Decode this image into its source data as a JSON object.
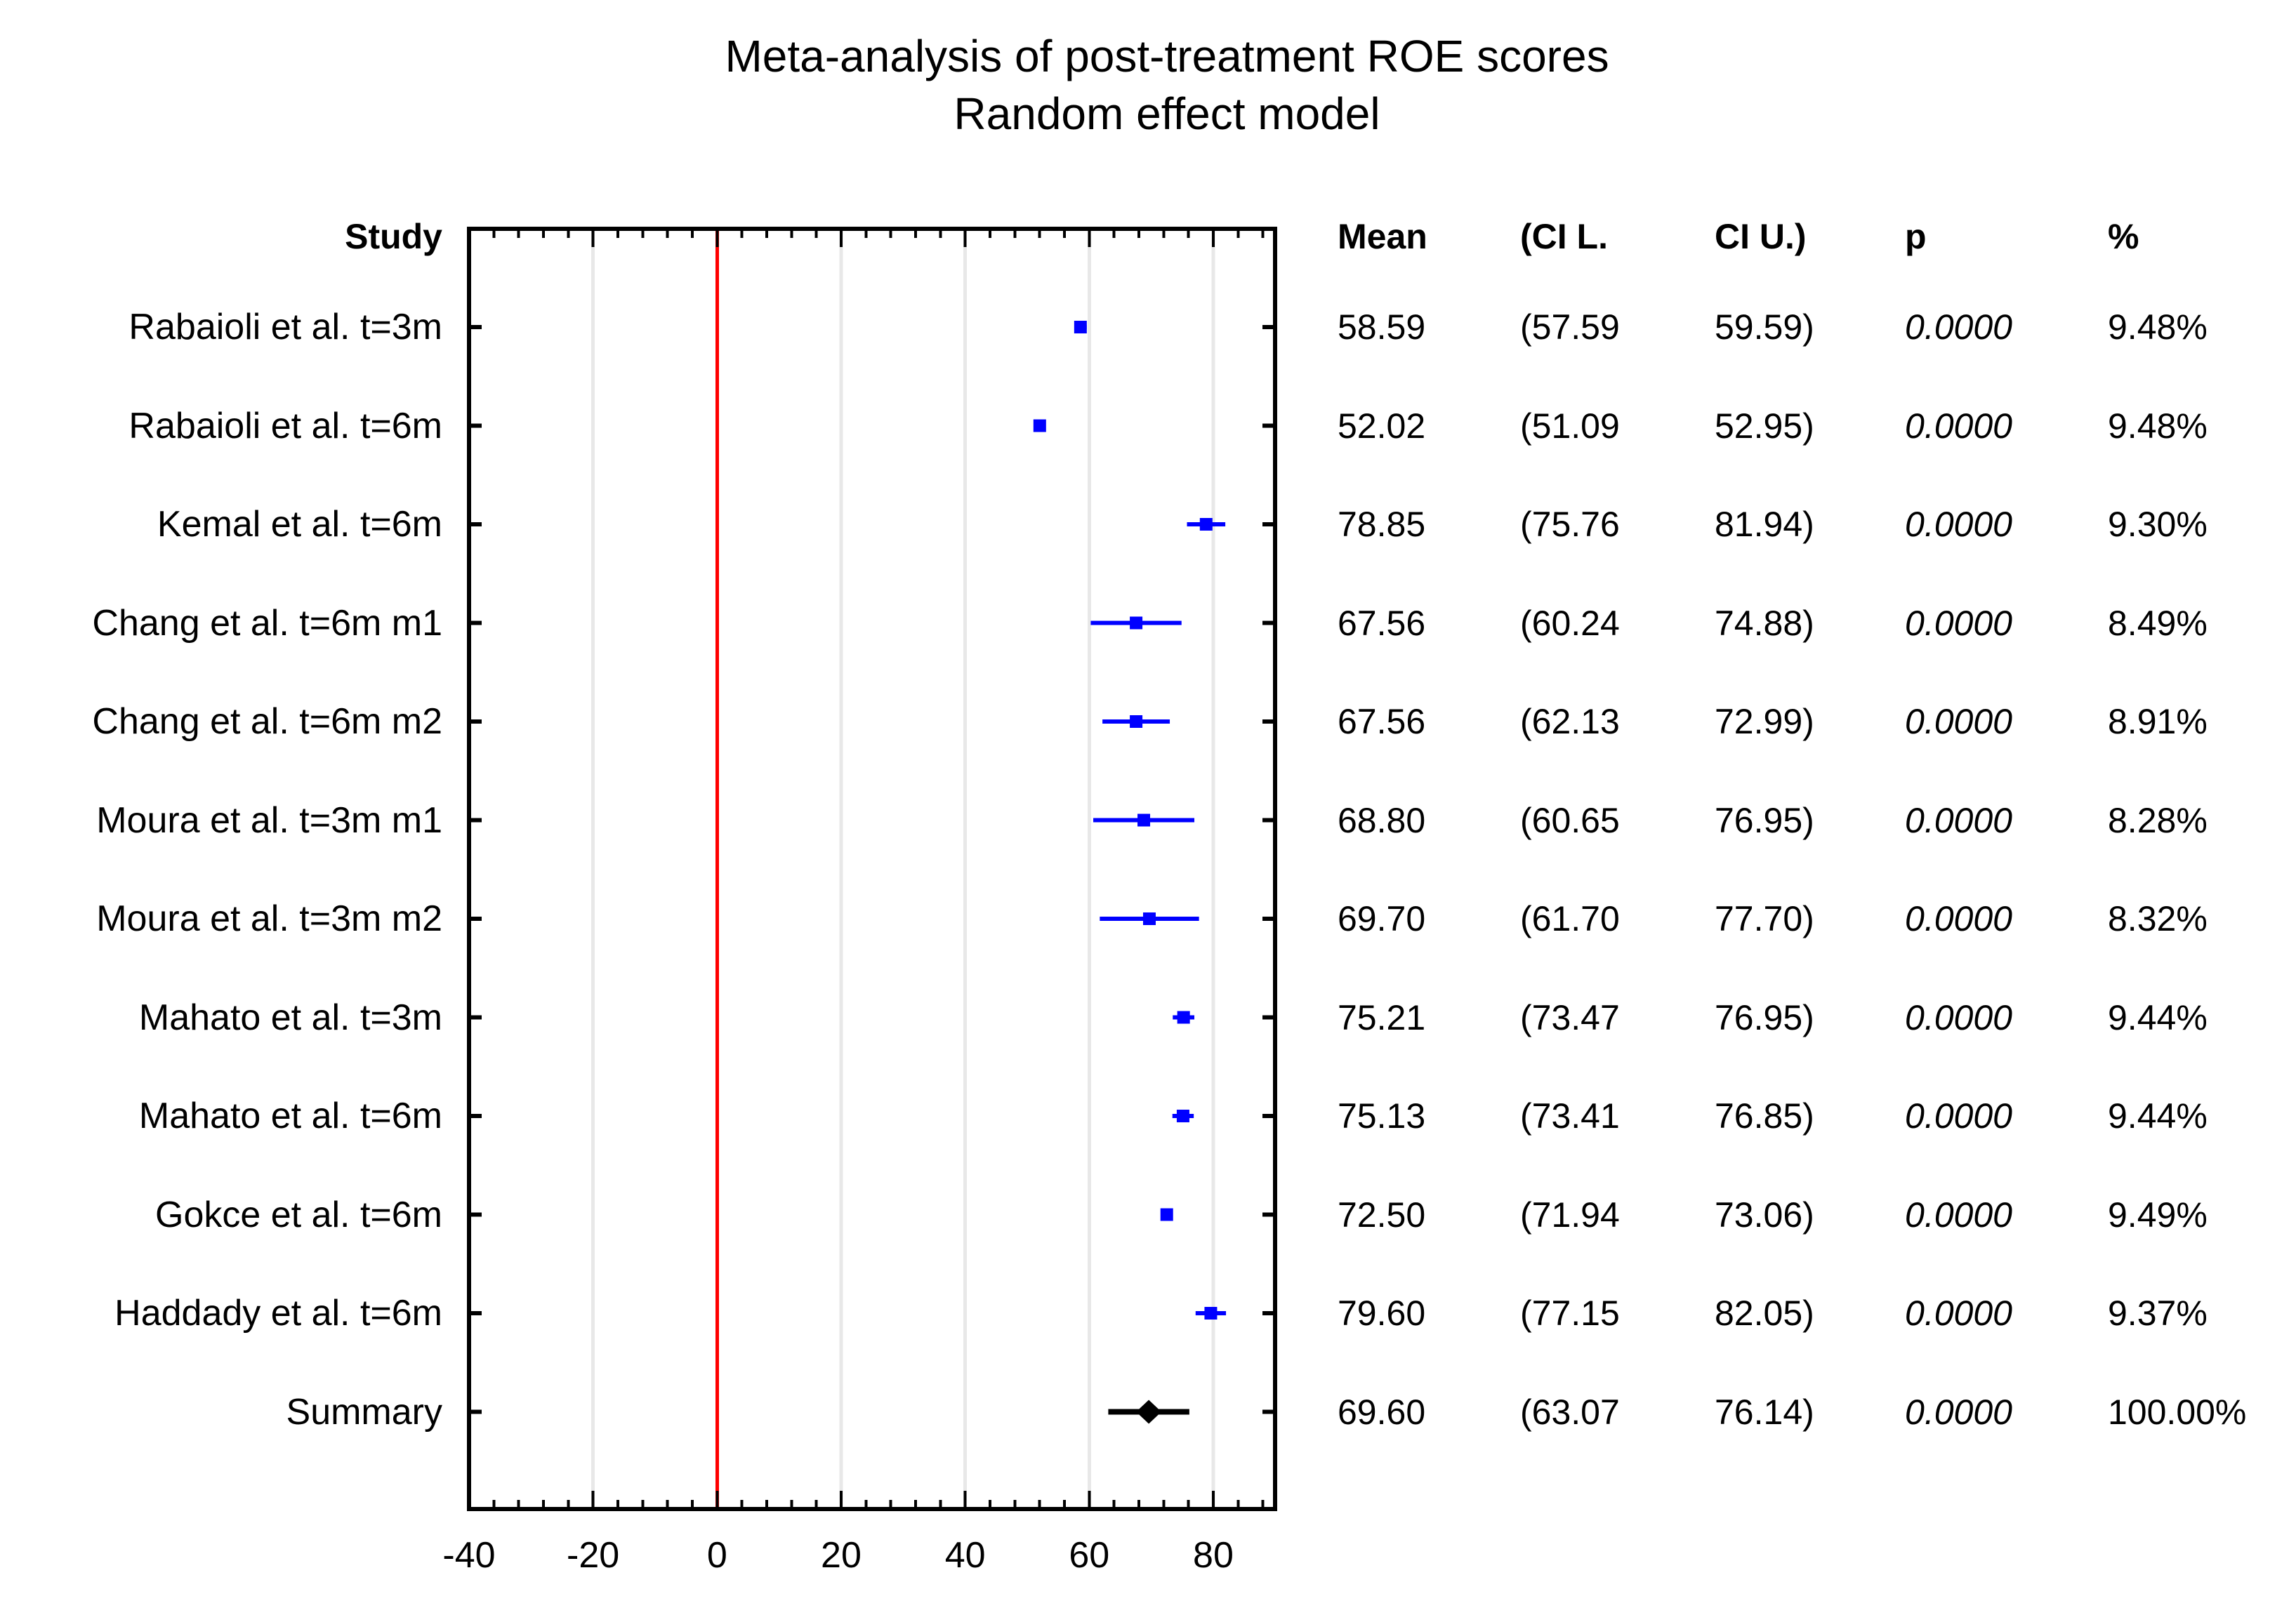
{
  "chart_data": {
    "type": "forest",
    "title": "Meta-analysis of post-treatment ROE scores",
    "subtitle": "Random effect model",
    "colors": {
      "study_marker": "#0000ff",
      "summary_marker": "#000000",
      "zero_line": "#ff0000",
      "gridline": "#e8e8e8",
      "axis": "#000000"
    },
    "x_axis": {
      "range": [
        -40,
        90
      ],
      "major_ticks": [
        -40,
        -20,
        0,
        20,
        40,
        60,
        80
      ],
      "tick_labels": [
        "-40",
        "-20",
        "0",
        "20",
        "40",
        "60",
        "80"
      ],
      "minor_tick_step": 4,
      "zero_reference_line": 0,
      "grid": "on"
    },
    "studies": [
      {
        "label": "Rabaioli et al. t=3m",
        "mean": 58.59,
        "ci_lower": 57.59,
        "ci_upper": 59.59,
        "mean_text": "58.59",
        "ci_lower_text": "(57.59",
        "ci_upper_text": "59.59)",
        "p_text": "0.0000",
        "weight_text": "9.48%",
        "summary": false
      },
      {
        "label": "Rabaioli et al. t=6m",
        "mean": 52.02,
        "ci_lower": 51.09,
        "ci_upper": 52.95,
        "mean_text": "52.02",
        "ci_lower_text": "(51.09",
        "ci_upper_text": "52.95)",
        "p_text": "0.0000",
        "weight_text": "9.48%",
        "summary": false
      },
      {
        "label": "Kemal et al. t=6m",
        "mean": 78.85,
        "ci_lower": 75.76,
        "ci_upper": 81.94,
        "mean_text": "78.85",
        "ci_lower_text": "(75.76",
        "ci_upper_text": "81.94)",
        "p_text": "0.0000",
        "weight_text": "9.30%",
        "summary": false
      },
      {
        "label": "Chang et al. t=6m m1",
        "mean": 67.56,
        "ci_lower": 60.24,
        "ci_upper": 74.88,
        "mean_text": "67.56",
        "ci_lower_text": "(60.24",
        "ci_upper_text": "74.88)",
        "p_text": "0.0000",
        "weight_text": "8.49%",
        "summary": false
      },
      {
        "label": "Chang et al. t=6m m2",
        "mean": 67.56,
        "ci_lower": 62.13,
        "ci_upper": 72.99,
        "mean_text": "67.56",
        "ci_lower_text": "(62.13",
        "ci_upper_text": "72.99)",
        "p_text": "0.0000",
        "weight_text": "8.91%",
        "summary": false
      },
      {
        "label": "Moura et al. t=3m m1",
        "mean": 68.8,
        "ci_lower": 60.65,
        "ci_upper": 76.95,
        "mean_text": "68.80",
        "ci_lower_text": "(60.65",
        "ci_upper_text": "76.95)",
        "p_text": "0.0000",
        "weight_text": "8.28%",
        "summary": false
      },
      {
        "label": "Moura et al. t=3m m2",
        "mean": 69.7,
        "ci_lower": 61.7,
        "ci_upper": 77.7,
        "mean_text": "69.70",
        "ci_lower_text": "(61.70",
        "ci_upper_text": "77.70)",
        "p_text": "0.0000",
        "weight_text": "8.32%",
        "summary": false
      },
      {
        "label": "Mahato et al. t=3m",
        "mean": 75.21,
        "ci_lower": 73.47,
        "ci_upper": 76.95,
        "mean_text": "75.21",
        "ci_lower_text": "(73.47",
        "ci_upper_text": "76.95)",
        "p_text": "0.0000",
        "weight_text": "9.44%",
        "summary": false
      },
      {
        "label": "Mahato et al. t=6m",
        "mean": 75.13,
        "ci_lower": 73.41,
        "ci_upper": 76.85,
        "mean_text": "75.13",
        "ci_lower_text": "(73.41",
        "ci_upper_text": "76.85)",
        "p_text": "0.0000",
        "weight_text": "9.44%",
        "summary": false
      },
      {
        "label": "Gokce et al. t=6m",
        "mean": 72.5,
        "ci_lower": 71.94,
        "ci_upper": 73.06,
        "mean_text": "72.50",
        "ci_lower_text": "(71.94",
        "ci_upper_text": "73.06)",
        "p_text": "0.0000",
        "weight_text": "9.49%",
        "summary": false
      },
      {
        "label": "Haddady et al. t=6m",
        "mean": 79.6,
        "ci_lower": 77.15,
        "ci_upper": 82.05,
        "mean_text": "79.60",
        "ci_lower_text": "(77.15",
        "ci_upper_text": "82.05)",
        "p_text": "0.0000",
        "weight_text": "9.37%",
        "summary": false
      },
      {
        "label": "Summary",
        "mean": 69.6,
        "ci_lower": 63.07,
        "ci_upper": 76.14,
        "mean_text": "69.60",
        "ci_lower_text": "(63.07",
        "ci_upper_text": "76.14)",
        "p_text": "0.0000",
        "weight_text": "100.00%",
        "summary": true
      }
    ]
  },
  "table": {
    "headers": {
      "study": "Study",
      "mean": "Mean",
      "ci_lower": "(CI L.",
      "ci_upper": "CI U.)",
      "p": "p",
      "weight": "%"
    }
  }
}
